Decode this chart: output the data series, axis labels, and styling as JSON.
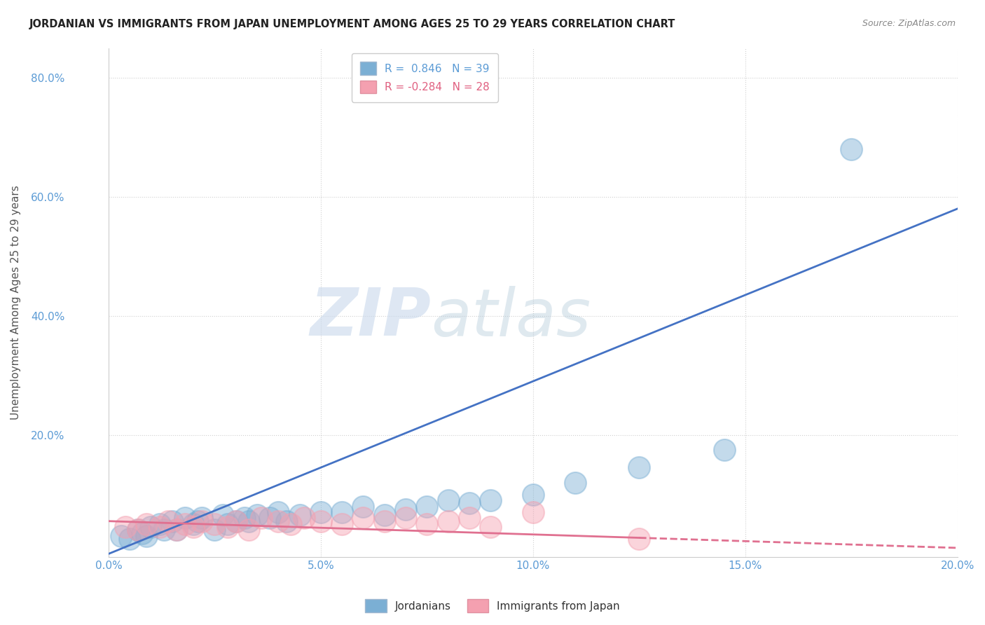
{
  "title": "JORDANIAN VS IMMIGRANTS FROM JAPAN UNEMPLOYMENT AMONG AGES 25 TO 29 YEARS CORRELATION CHART",
  "source": "Source: ZipAtlas.com",
  "ylabel": "Unemployment Among Ages 25 to 29 years",
  "xlim": [
    0,
    0.2
  ],
  "ylim": [
    -0.005,
    0.85
  ],
  "xticks": [
    0.0,
    0.05,
    0.1,
    0.15,
    0.2
  ],
  "xtick_labels": [
    "0.0%",
    "5.0%",
    "10.0%",
    "15.0%",
    "20.0%"
  ],
  "yticks": [
    0.0,
    0.2,
    0.4,
    0.6,
    0.8
  ],
  "ytick_labels": [
    "",
    "20.0%",
    "40.0%",
    "60.0%",
    "80.0%"
  ],
  "legend_blue_label": "R =  0.846   N = 39",
  "legend_pink_label": "R = -0.284   N = 28",
  "blue_scatter_x": [
    0.003,
    0.005,
    0.007,
    0.008,
    0.009,
    0.01,
    0.012,
    0.013,
    0.015,
    0.016,
    0.018,
    0.02,
    0.021,
    0.022,
    0.025,
    0.027,
    0.028,
    0.03,
    0.032,
    0.033,
    0.035,
    0.038,
    0.04,
    0.042,
    0.045,
    0.05,
    0.055,
    0.06,
    0.065,
    0.07,
    0.075,
    0.08,
    0.085,
    0.09,
    0.1,
    0.11,
    0.125,
    0.145,
    0.175
  ],
  "blue_scatter_y": [
    0.03,
    0.025,
    0.04,
    0.035,
    0.03,
    0.045,
    0.05,
    0.04,
    0.055,
    0.04,
    0.06,
    0.05,
    0.055,
    0.06,
    0.04,
    0.065,
    0.05,
    0.055,
    0.06,
    0.055,
    0.065,
    0.06,
    0.07,
    0.055,
    0.065,
    0.07,
    0.07,
    0.08,
    0.065,
    0.075,
    0.08,
    0.09,
    0.085,
    0.09,
    0.1,
    0.12,
    0.145,
    0.175,
    0.68
  ],
  "pink_scatter_x": [
    0.004,
    0.007,
    0.009,
    0.012,
    0.014,
    0.016,
    0.018,
    0.02,
    0.022,
    0.025,
    0.028,
    0.03,
    0.033,
    0.036,
    0.04,
    0.043,
    0.046,
    0.05,
    0.055,
    0.06,
    0.065,
    0.07,
    0.075,
    0.08,
    0.085,
    0.09,
    0.1,
    0.125
  ],
  "pink_scatter_y": [
    0.045,
    0.04,
    0.05,
    0.045,
    0.055,
    0.04,
    0.05,
    0.045,
    0.055,
    0.05,
    0.045,
    0.055,
    0.04,
    0.06,
    0.055,
    0.05,
    0.06,
    0.055,
    0.05,
    0.06,
    0.055,
    0.06,
    0.05,
    0.055,
    0.06,
    0.045,
    0.07,
    0.025
  ],
  "blue_line_x": [
    0.0,
    0.2
  ],
  "blue_line_y": [
    0.0,
    0.58
  ],
  "pink_solid_line_x": [
    0.0,
    0.125
  ],
  "pink_solid_line_y": [
    0.055,
    0.027
  ],
  "pink_dashed_line_x": [
    0.125,
    0.2
  ],
  "pink_dashed_line_y": [
    0.027,
    0.01
  ],
  "blue_scatter_color": "#7bafd4",
  "pink_scatter_color": "#f4a0b0",
  "blue_line_color": "#4472c4",
  "pink_line_color": "#e07090",
  "watermark_zip": "ZIP",
  "watermark_atlas": "atlas",
  "background_color": "#ffffff",
  "grid_color": "#d0d0d0",
  "title_color": "#222222",
  "source_color": "#888888",
  "axis_label_color": "#555555",
  "tick_color": "#5b9bd5"
}
